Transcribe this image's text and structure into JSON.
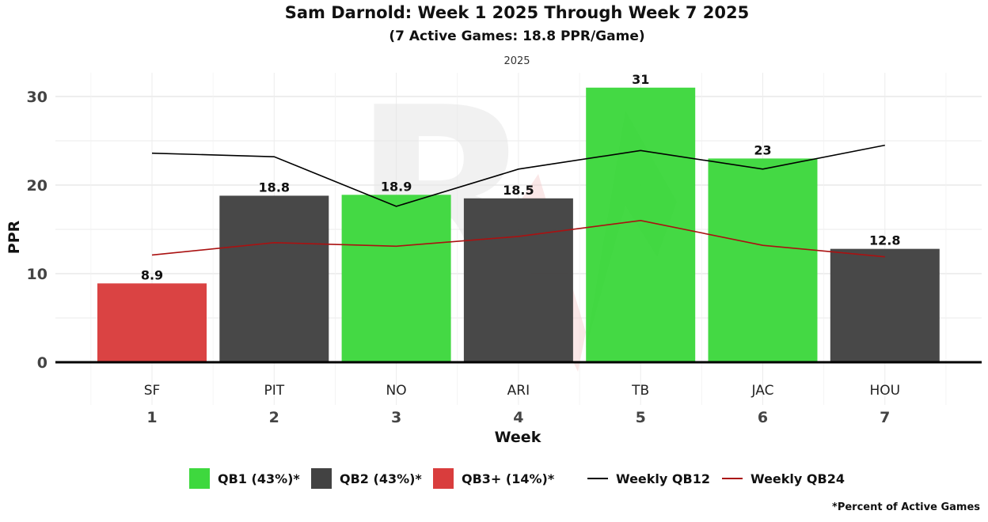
{
  "title": "Sam Darnold: Week 1 2025 Through Week 7 2025",
  "subtitle": "(7 Active Games: 18.8 PPR/Game)",
  "facet_label": "2025",
  "footnote": "*Percent of Active Games",
  "colors": {
    "qb1": "#3ED83E",
    "qb2": "#424242",
    "qb3": "#D93D3D",
    "qb12_line": "#000000",
    "qb24_line": "#AA1111"
  },
  "legend": [
    {
      "label": "QB1 (43%)*",
      "kind": "swatch",
      "color": "#3ED83E"
    },
    {
      "label": "QB2 (43%)*",
      "kind": "swatch",
      "color": "#424242"
    },
    {
      "label": "QB3+ (14%)*",
      "kind": "swatch",
      "color": "#D93D3D"
    },
    {
      "label": "Weekly QB12",
      "kind": "line",
      "color": "#000000"
    },
    {
      "label": "Weekly QB24",
      "kind": "line",
      "color": "#AA1111"
    }
  ],
  "chart_data": {
    "type": "bar",
    "title": "Sam Darnold: Week 1 2025 Through Week 7 2025",
    "subtitle": "(7 Active Games: 18.8 PPR/Game)",
    "xlabel": "Week",
    "ylabel": "PPR",
    "ylim": [
      0,
      32
    ],
    "yticks": [
      0,
      10,
      20,
      30
    ],
    "weeks": [
      "1",
      "2",
      "3",
      "4",
      "5",
      "6",
      "7"
    ],
    "opponents": [
      "SF",
      "PIT",
      "NO",
      "ARI",
      "TB",
      "JAC",
      "HOU"
    ],
    "values": [
      8.9,
      18.8,
      18.9,
      18.5,
      31,
      23,
      12.8
    ],
    "value_labels": [
      "8.9",
      "18.8",
      "18.9",
      "18.5",
      "31",
      "23",
      "12.8"
    ],
    "tiers": [
      "QB3+",
      "QB2",
      "QB1",
      "QB2",
      "QB1",
      "QB1",
      "QB2"
    ],
    "series": [
      {
        "name": "Weekly QB12",
        "values": [
          23.6,
          23.2,
          17.6,
          21.8,
          23.9,
          21.8,
          24.5
        ]
      },
      {
        "name": "Weekly QB24",
        "values": [
          12.1,
          13.5,
          13.1,
          14.2,
          16.0,
          13.2,
          11.9
        ]
      }
    ]
  }
}
